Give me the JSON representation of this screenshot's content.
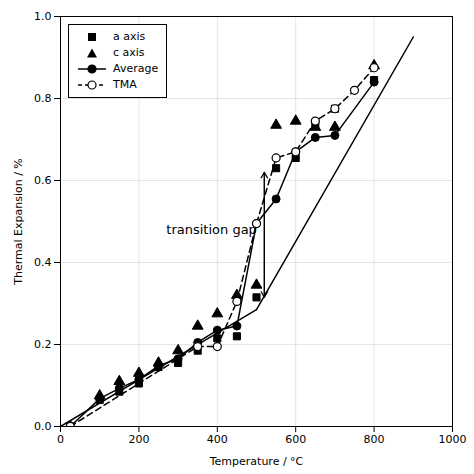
{
  "chart_data": {
    "type": "line",
    "xlabel": "Temperature / °C",
    "ylabel": "Thermal Expansion / %",
    "xlim": [
      0,
      1000
    ],
    "ylim": [
      0.0,
      1.0
    ],
    "xticks": [
      0,
      200,
      400,
      600,
      800,
      1000
    ],
    "yticks": [
      {
        "value": 0.0,
        "label": "0.0"
      },
      0.2,
      0.4,
      0.6,
      0.8,
      {
        "value": 1.0,
        "label": "1.0"
      }
    ],
    "grid": true,
    "legend": "upper left",
    "series": [
      {
        "type": "line",
        "line_style": "solid",
        "color": "#000000",
        "x": [
          0,
          500
        ],
        "values": [
          0.0,
          0.285
        ]
      },
      {
        "type": "line",
        "line_style": "solid",
        "color": "#000000",
        "x": [
          500,
          900
        ],
        "values": [
          0.285,
          0.95
        ]
      },
      {
        "name": "a axis",
        "type": "scatter",
        "marker": "square",
        "color": "#000000",
        "x": [
          25,
          100,
          150,
          200,
          250,
          300,
          350,
          400,
          450,
          500,
          550,
          600,
          650,
          700,
          800
        ],
        "values": [
          0.0,
          0.065,
          0.085,
          0.105,
          0.145,
          0.155,
          0.185,
          0.215,
          0.22,
          0.315,
          0.63,
          0.655,
          0.74,
          0.775,
          0.845
        ]
      },
      {
        "name": "c axis",
        "type": "scatter",
        "marker": "triangle",
        "color": "#000000",
        "x": [
          25,
          100,
          150,
          200,
          250,
          300,
          350,
          400,
          450,
          500,
          550,
          600,
          650,
          700,
          800
        ],
        "values": [
          0.0,
          0.075,
          0.11,
          0.13,
          0.155,
          0.185,
          0.245,
          0.275,
          0.32,
          0.345,
          0.735,
          0.745,
          0.73,
          0.73,
          0.88
        ]
      },
      {
        "name": "Average",
        "type": "line",
        "marker": "circle",
        "line_style": "solid",
        "color": "#000000",
        "x": [
          25,
          100,
          150,
          200,
          250,
          300,
          350,
          400,
          450,
          500,
          550,
          600,
          650,
          700,
          800
        ],
        "values": [
          0.0,
          0.068,
          0.093,
          0.115,
          0.148,
          0.165,
          0.205,
          0.235,
          0.245,
          0.495,
          0.555,
          0.67,
          0.705,
          0.71,
          0.84
        ]
      },
      {
        "name": "TMA",
        "type": "line",
        "marker": "open_circle",
        "line_style": "dashed",
        "color": "#000000",
        "x": [
          25,
          350,
          400,
          450,
          500,
          550,
          600,
          650,
          700,
          750,
          800
        ],
        "values": [
          0.0,
          0.195,
          0.195,
          0.305,
          0.495,
          0.655,
          0.67,
          0.745,
          0.775,
          0.82,
          0.875
        ]
      }
    ],
    "annotations": [
      {
        "type": "double_arrow",
        "x": 520,
        "y": [
          0.315,
          0.62
        ],
        "color": "#000000"
      },
      {
        "type": "text",
        "text": "transition gap",
        "x": 270,
        "y": 0.48,
        "color": "#000000"
      }
    ]
  }
}
